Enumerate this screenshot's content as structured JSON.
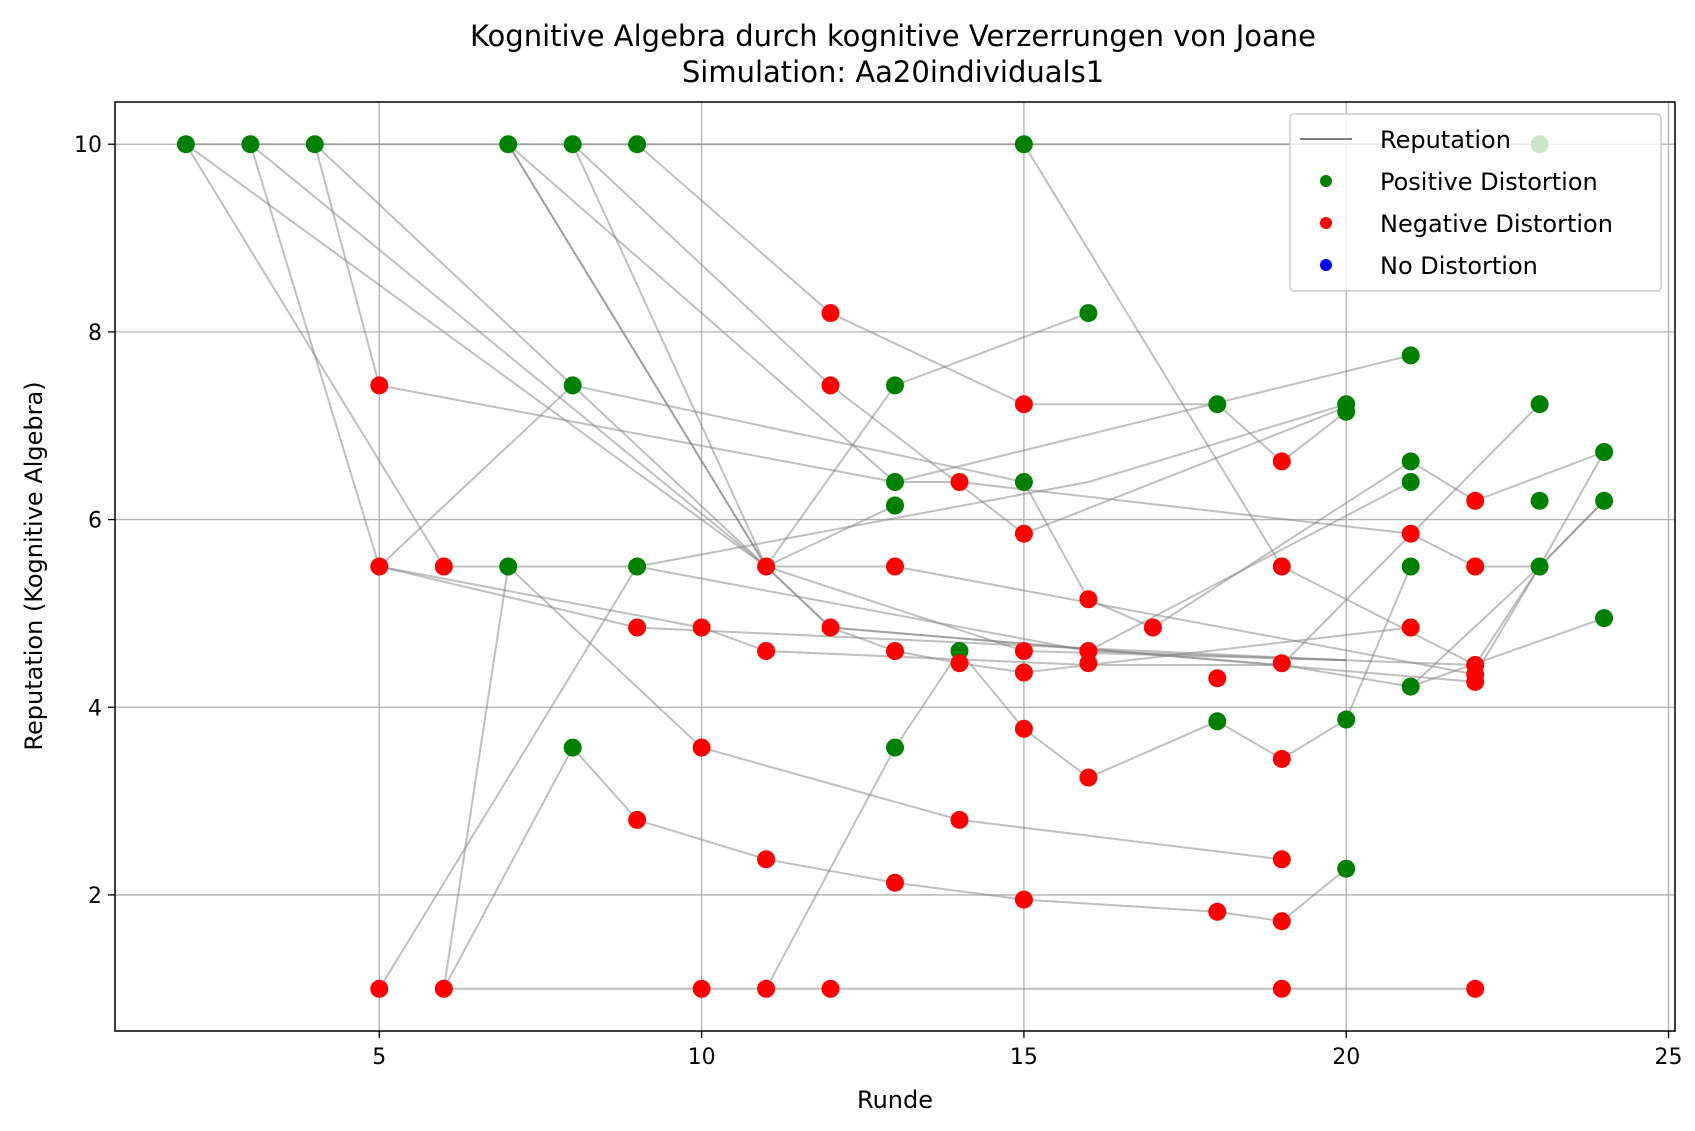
{
  "chart_data": {
    "type": "scatter",
    "title": "Kognitive Algebra durch kognitive Verzerrungen von Joane",
    "subtitle": "Simulation: Aa20individuals1",
    "xlabel": "Runde",
    "ylabel": "Reputation (Kognitive Algebra)",
    "xlim": [
      0.9,
      25.1
    ],
    "ylim": [
      0.55,
      10.45
    ],
    "xticks": [
      5,
      10,
      15,
      20,
      25
    ],
    "yticks": [
      2,
      4,
      6,
      8,
      10
    ],
    "grid": true,
    "legend_position": "top-right",
    "legend": [
      {
        "label": "Reputation",
        "kind": "line",
        "color": "#808080"
      },
      {
        "label": "Positive Distortion",
        "kind": "marker",
        "color": "#008000"
      },
      {
        "label": "Negative Distortion",
        "kind": "marker",
        "color": "#ff0000"
      },
      {
        "label": "No Distortion",
        "kind": "marker",
        "color": "#0000ff"
      }
    ],
    "colors": {
      "positive": "#008000",
      "negative": "#ff0000",
      "none": "#0000ff",
      "line": "#808080"
    },
    "trajectories": [
      [
        [
          2,
          10
        ],
        [
          10,
          10
        ],
        [
          19,
          10
        ],
        [
          20,
          10
        ]
      ],
      [
        [
          3,
          10
        ],
        [
          5,
          5.5
        ],
        [
          9,
          4.85
        ],
        [
          20,
          4.5
        ]
      ],
      [
        [
          3,
          10
        ],
        [
          11,
          5.5
        ],
        [
          13,
          6.15
        ]
      ],
      [
        [
          2,
          10
        ],
        [
          6,
          5.5
        ],
        [
          9,
          5.5
        ],
        [
          16,
          4.6
        ],
        [
          20,
          4.5
        ]
      ],
      [
        [
          2,
          10
        ],
        [
          11,
          5.5
        ],
        [
          12,
          4.85
        ],
        [
          22,
          4.27
        ]
      ],
      [
        [
          4,
          10
        ],
        [
          5,
          7.43
        ],
        [
          13,
          6.4
        ],
        [
          14,
          6.4
        ],
        [
          21,
          5.85
        ],
        [
          22,
          5.5
        ],
        [
          23,
          5.5
        ],
        [
          24,
          6.2
        ]
      ],
      [
        [
          4,
          10
        ],
        [
          11,
          5.5
        ],
        [
          12,
          4.85
        ],
        [
          19,
          4.45
        ],
        [
          21,
          4.22
        ],
        [
          23,
          5.5
        ]
      ],
      [
        [
          7,
          10
        ],
        [
          11,
          5.5
        ],
        [
          13,
          7.43
        ],
        [
          16,
          8.2
        ]
      ],
      [
        [
          7,
          10
        ],
        [
          11,
          5.5
        ],
        [
          15,
          4.6
        ],
        [
          20,
          4.5
        ],
        [
          22,
          4.45
        ]
      ],
      [
        [
          7,
          10
        ],
        [
          13,
          6.4
        ],
        [
          21,
          7.75
        ]
      ],
      [
        [
          8,
          10
        ],
        [
          12,
          7.43
        ],
        [
          15,
          5.85
        ],
        [
          20,
          7.2
        ]
      ],
      [
        [
          8,
          10
        ],
        [
          11,
          5.5
        ],
        [
          13,
          5.5
        ],
        [
          22,
          4.35
        ],
        [
          23,
          5.5
        ],
        [
          24,
          6.2
        ]
      ],
      [
        [
          9,
          10
        ],
        [
          12,
          8.2
        ],
        [
          15,
          7.23
        ],
        [
          18,
          7.23
        ],
        [
          19,
          6.62
        ],
        [
          20,
          7.15
        ]
      ],
      [
        [
          15,
          10
        ],
        [
          19,
          5.5
        ],
        [
          22,
          4.45
        ],
        [
          23,
          5.5
        ],
        [
          24,
          6.72
        ]
      ],
      [
        [
          20,
          10
        ],
        [
          23,
          10
        ]
      ],
      [
        [
          5,
          5.5
        ],
        [
          8,
          7.43
        ],
        [
          15,
          6.4
        ],
        [
          16,
          5.15
        ],
        [
          17,
          4.85
        ],
        [
          21,
          6.62
        ],
        [
          22,
          6.2
        ],
        [
          24,
          6.72
        ]
      ],
      [
        [
          5,
          5.5
        ],
        [
          10,
          4.85
        ],
        [
          11,
          4.6
        ],
        [
          16,
          4.45
        ],
        [
          19,
          4.45
        ],
        [
          23,
          7.23
        ]
      ],
      [
        [
          7,
          5.5
        ],
        [
          10,
          3.57
        ],
        [
          14,
          2.8
        ],
        [
          19,
          2.38
        ]
      ],
      [
        [
          5,
          1
        ],
        [
          9,
          5.5
        ],
        [
          16,
          6.4
        ],
        [
          20,
          7.23
        ]
      ],
      [
        [
          6,
          1
        ],
        [
          7,
          5.5
        ]
      ],
      [
        [
          6,
          1
        ],
        [
          8,
          3.57
        ],
        [
          9,
          2.8
        ],
        [
          11,
          2.38
        ],
        [
          13,
          2.13
        ],
        [
          15,
          1.95
        ],
        [
          18,
          1.82
        ],
        [
          19,
          1.72
        ],
        [
          20,
          2.28
        ]
      ],
      [
        [
          6,
          1
        ],
        [
          10,
          1
        ],
        [
          11,
          1
        ],
        [
          12,
          1
        ],
        [
          19,
          1
        ],
        [
          22,
          1
        ]
      ],
      [
        [
          11,
          1
        ],
        [
          13,
          3.57
        ],
        [
          14,
          4.6
        ],
        [
          15,
          3.77
        ],
        [
          16,
          3.25
        ],
        [
          18,
          3.85
        ],
        [
          19,
          3.45
        ],
        [
          20,
          3.87
        ],
        [
          21,
          5.5
        ]
      ],
      [
        [
          12,
          4.85
        ],
        [
          13,
          4.6
        ],
        [
          14,
          4.47
        ],
        [
          15,
          4.37
        ],
        [
          21,
          4.85
        ]
      ],
      [
        [
          16,
          4.6
        ],
        [
          21,
          6.4
        ]
      ],
      [
        [
          21,
          4.22
        ],
        [
          24,
          4.95
        ]
      ]
    ],
    "points": [
      {
        "x": 2,
        "y": 10,
        "d": "positive"
      },
      {
        "x": 3,
        "y": 10,
        "d": "positive"
      },
      {
        "x": 4,
        "y": 10,
        "d": "positive"
      },
      {
        "x": 7,
        "y": 10,
        "d": "positive"
      },
      {
        "x": 8,
        "y": 10,
        "d": "positive"
      },
      {
        "x": 9,
        "y": 10,
        "d": "positive"
      },
      {
        "x": 15,
        "y": 10,
        "d": "positive"
      },
      {
        "x": 23,
        "y": 10,
        "d": "positive"
      },
      {
        "x": 12,
        "y": 8.2,
        "d": "negative"
      },
      {
        "x": 16,
        "y": 8.2,
        "d": "positive"
      },
      {
        "x": 21,
        "y": 7.75,
        "d": "positive"
      },
      {
        "x": 5,
        "y": 7.43,
        "d": "negative"
      },
      {
        "x": 8,
        "y": 7.43,
        "d": "positive"
      },
      {
        "x": 12,
        "y": 7.43,
        "d": "negative"
      },
      {
        "x": 13,
        "y": 7.43,
        "d": "positive"
      },
      {
        "x": 15,
        "y": 7.23,
        "d": "negative"
      },
      {
        "x": 18,
        "y": 7.23,
        "d": "positive"
      },
      {
        "x": 20,
        "y": 7.23,
        "d": "positive"
      },
      {
        "x": 20,
        "y": 7.15,
        "d": "positive"
      },
      {
        "x": 23,
        "y": 7.23,
        "d": "positive"
      },
      {
        "x": 19,
        "y": 6.62,
        "d": "negative"
      },
      {
        "x": 21,
        "y": 6.62,
        "d": "positive"
      },
      {
        "x": 24,
        "y": 6.72,
        "d": "positive"
      },
      {
        "x": 13,
        "y": 6.4,
        "d": "positive"
      },
      {
        "x": 14,
        "y": 6.4,
        "d": "negative"
      },
      {
        "x": 15,
        "y": 6.4,
        "d": "positive"
      },
      {
        "x": 21,
        "y": 6.4,
        "d": "positive"
      },
      {
        "x": 13,
        "y": 6.15,
        "d": "positive"
      },
      {
        "x": 22,
        "y": 6.2,
        "d": "negative"
      },
      {
        "x": 23,
        "y": 6.2,
        "d": "positive"
      },
      {
        "x": 24,
        "y": 6.2,
        "d": "positive"
      },
      {
        "x": 15,
        "y": 5.85,
        "d": "negative"
      },
      {
        "x": 21,
        "y": 5.85,
        "d": "negative"
      },
      {
        "x": 5,
        "y": 5.5,
        "d": "negative"
      },
      {
        "x": 6,
        "y": 5.5,
        "d": "negative"
      },
      {
        "x": 7,
        "y": 5.5,
        "d": "positive"
      },
      {
        "x": 9,
        "y": 5.5,
        "d": "positive"
      },
      {
        "x": 11,
        "y": 5.5,
        "d": "negative"
      },
      {
        "x": 13,
        "y": 5.5,
        "d": "negative"
      },
      {
        "x": 19,
        "y": 5.5,
        "d": "negative"
      },
      {
        "x": 21,
        "y": 5.5,
        "d": "positive"
      },
      {
        "x": 22,
        "y": 5.5,
        "d": "negative"
      },
      {
        "x": 23,
        "y": 5.5,
        "d": "positive"
      },
      {
        "x": 16,
        "y": 5.15,
        "d": "negative"
      },
      {
        "x": 24,
        "y": 4.95,
        "d": "positive"
      },
      {
        "x": 9,
        "y": 4.85,
        "d": "negative"
      },
      {
        "x": 10,
        "y": 4.85,
        "d": "negative"
      },
      {
        "x": 12,
        "y": 4.85,
        "d": "negative"
      },
      {
        "x": 17,
        "y": 4.85,
        "d": "negative"
      },
      {
        "x": 21,
        "y": 4.85,
        "d": "negative"
      },
      {
        "x": 11,
        "y": 4.6,
        "d": "negative"
      },
      {
        "x": 13,
        "y": 4.6,
        "d": "negative"
      },
      {
        "x": 14,
        "y": 4.6,
        "d": "positive"
      },
      {
        "x": 15,
        "y": 4.6,
        "d": "negative"
      },
      {
        "x": 16,
        "y": 4.6,
        "d": "negative"
      },
      {
        "x": 14,
        "y": 4.47,
        "d": "negative"
      },
      {
        "x": 16,
        "y": 4.47,
        "d": "negative"
      },
      {
        "x": 19,
        "y": 4.47,
        "d": "negative"
      },
      {
        "x": 22,
        "y": 4.45,
        "d": "negative"
      },
      {
        "x": 15,
        "y": 4.37,
        "d": "negative"
      },
      {
        "x": 22,
        "y": 4.35,
        "d": "negative"
      },
      {
        "x": 18,
        "y": 4.31,
        "d": "negative"
      },
      {
        "x": 22,
        "y": 4.27,
        "d": "negative"
      },
      {
        "x": 21,
        "y": 4.22,
        "d": "positive"
      },
      {
        "x": 18,
        "y": 3.85,
        "d": "positive"
      },
      {
        "x": 20,
        "y": 3.87,
        "d": "positive"
      },
      {
        "x": 15,
        "y": 3.77,
        "d": "negative"
      },
      {
        "x": 8,
        "y": 3.57,
        "d": "positive"
      },
      {
        "x": 10,
        "y": 3.57,
        "d": "negative"
      },
      {
        "x": 13,
        "y": 3.57,
        "d": "positive"
      },
      {
        "x": 19,
        "y": 3.45,
        "d": "negative"
      },
      {
        "x": 16,
        "y": 3.25,
        "d": "negative"
      },
      {
        "x": 9,
        "y": 2.8,
        "d": "negative"
      },
      {
        "x": 14,
        "y": 2.8,
        "d": "negative"
      },
      {
        "x": 11,
        "y": 2.38,
        "d": "negative"
      },
      {
        "x": 19,
        "y": 2.38,
        "d": "negative"
      },
      {
        "x": 20,
        "y": 2.28,
        "d": "positive"
      },
      {
        "x": 13,
        "y": 2.13,
        "d": "negative"
      },
      {
        "x": 15,
        "y": 1.95,
        "d": "negative"
      },
      {
        "x": 18,
        "y": 1.82,
        "d": "negative"
      },
      {
        "x": 19,
        "y": 1.72,
        "d": "negative"
      },
      {
        "x": 5,
        "y": 1,
        "d": "negative"
      },
      {
        "x": 6,
        "y": 1,
        "d": "negative"
      },
      {
        "x": 10,
        "y": 1,
        "d": "negative"
      },
      {
        "x": 11,
        "y": 1,
        "d": "negative"
      },
      {
        "x": 12,
        "y": 1,
        "d": "negative"
      },
      {
        "x": 19,
        "y": 1,
        "d": "negative"
      },
      {
        "x": 22,
        "y": 1,
        "d": "negative"
      }
    ]
  }
}
